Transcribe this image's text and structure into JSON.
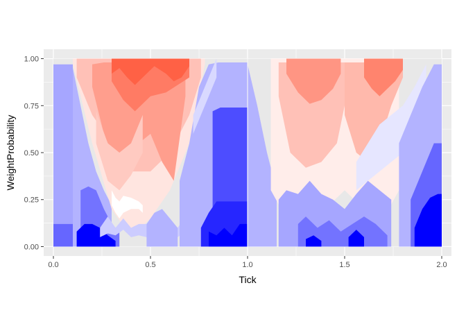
{
  "chart_data": {
    "type": "heatmap",
    "title": "",
    "xlabel": "Tick",
    "ylabel": "WeightProbability",
    "xlim": [
      -0.05,
      2.05
    ],
    "ylim": [
      -0.05,
      1.05
    ],
    "x_ticks": [
      0,
      0.5,
      1,
      1.5,
      2
    ],
    "x_tick_labels": [
      "0.0",
      "0.5",
      "1.0",
      "1.5",
      "2.0"
    ],
    "y_ticks": [
      0,
      0.25,
      0.5,
      0.75,
      1
    ],
    "y_tick_labels": [
      "0.00",
      "0.25",
      "0.50",
      "0.75",
      "1.00"
    ],
    "grid": true,
    "background": "#ebebeb",
    "fill_scale": {
      "low": "#0000ff",
      "mid": "#ffffff",
      "high": "#ff4f30"
    },
    "data_extent": {
      "x": [
        0,
        2
      ],
      "y": [
        0,
        1
      ]
    },
    "regions": [
      {
        "kind": "band",
        "x": [
          0.0,
          0.1
        ],
        "y0": [
          0.0,
          0.0
        ],
        "y1": [
          0.97,
          0.97
        ],
        "level": -0.35
      },
      {
        "kind": "band",
        "x": [
          0.0,
          0.03,
          0.06,
          0.1,
          0.14
        ],
        "y0": [
          0.0,
          0.0,
          0.0,
          0.0,
          0.0
        ],
        "y1": [
          0.12,
          0.12,
          0.12,
          0.12,
          0.1
        ],
        "level": -0.6
      },
      {
        "kind": "band",
        "x": [
          0.1,
          0.14,
          0.18,
          0.22,
          0.26,
          0.3
        ],
        "y0": [
          0.0,
          0.0,
          0.0,
          0.0,
          0.0,
          0.0
        ],
        "y1": [
          0.95,
          0.75,
          0.55,
          0.4,
          0.3,
          0.22
        ],
        "level": -0.3
      },
      {
        "kind": "band",
        "x": [
          0.14,
          0.18,
          0.22,
          0.26,
          0.3,
          0.34
        ],
        "y0": [
          0.0,
          0.0,
          0.0,
          0.0,
          0.0,
          0.0
        ],
        "y1": [
          0.3,
          0.32,
          0.3,
          0.2,
          0.12,
          0.08
        ],
        "level": -0.55
      },
      {
        "kind": "band",
        "x": [
          0.12,
          0.16,
          0.2,
          0.24,
          0.28,
          0.32
        ],
        "y0": [
          0.0,
          0.0,
          0.0,
          0.0,
          0.0,
          0.0
        ],
        "y1": [
          0.08,
          0.12,
          0.12,
          0.1,
          0.06,
          0.03
        ],
        "level": -1.0
      },
      {
        "kind": "band",
        "x": [
          0.1,
          0.2,
          0.3,
          0.4,
          0.5,
          0.6,
          0.7,
          0.78
        ],
        "y0": [
          0.97,
          0.55,
          0.2,
          0.05,
          0.15,
          0.3,
          0.55,
          0.97
        ],
        "y1": [
          1.0,
          1.0,
          1.0,
          1.0,
          1.0,
          1.0,
          1.0,
          1.0
        ],
        "level": 0.15
      },
      {
        "kind": "band",
        "x": [
          0.12,
          0.2,
          0.3,
          0.4,
          0.5,
          0.6,
          0.7,
          0.76
        ],
        "y0": [
          0.9,
          0.7,
          0.55,
          0.4,
          0.4,
          0.5,
          0.7,
          0.9
        ],
        "y1": [
          1.0,
          1.0,
          1.0,
          1.0,
          1.0,
          1.0,
          1.0,
          1.0
        ],
        "level": 0.35
      },
      {
        "kind": "band",
        "x": [
          0.2,
          0.26,
          0.32,
          0.38,
          0.44,
          0.5,
          0.56,
          0.62,
          0.68
        ],
        "y0": [
          0.85,
          0.6,
          0.45,
          0.5,
          0.55,
          0.6,
          0.45,
          0.35,
          0.8
        ],
        "y1": [
          0.97,
          0.98,
          0.98,
          0.98,
          0.98,
          0.98,
          0.98,
          0.98,
          0.97
        ],
        "level": 0.55
      },
      {
        "kind": "band",
        "x": [
          0.3,
          0.36,
          0.42,
          0.5,
          0.58,
          0.64,
          0.7
        ],
        "y0": [
          0.88,
          0.78,
          0.72,
          0.8,
          0.82,
          0.86,
          0.9
        ],
        "y1": [
          1.0,
          1.0,
          1.0,
          1.0,
          1.0,
          1.0,
          1.0
        ],
        "level": 0.75
      },
      {
        "kind": "band",
        "x": [
          0.3,
          0.34,
          0.38,
          0.42,
          0.46,
          0.52,
          0.58,
          0.62,
          0.66,
          0.7
        ],
        "y0": [
          0.92,
          0.95,
          0.9,
          0.86,
          0.9,
          0.96,
          0.92,
          0.88,
          0.9,
          0.96
        ],
        "y1": [
          1.0,
          1.0,
          1.0,
          1.0,
          1.0,
          1.0,
          1.0,
          1.0,
          1.0,
          1.0
        ],
        "level": 0.9
      },
      {
        "kind": "band",
        "x": [
          0.22,
          0.28,
          0.34,
          0.4,
          0.46
        ],
        "y0": [
          0.55,
          0.35,
          0.3,
          0.38,
          0.5
        ],
        "y1": [
          0.72,
          0.55,
          0.5,
          0.55,
          0.7
        ],
        "level": 0.3
      },
      {
        "kind": "band",
        "x": [
          0.24,
          0.28,
          0.32,
          0.36,
          0.4,
          0.44,
          0.48,
          0.52,
          0.56,
          0.6,
          0.64,
          0.68,
          0.72
        ],
        "y0": [
          0.05,
          0.07,
          0.06,
          0.09,
          0.05,
          0.06,
          0.05,
          0.02,
          0.04,
          0.02,
          0.05,
          0.08,
          0.1
        ],
        "y1": [
          0.1,
          0.16,
          0.1,
          0.15,
          0.1,
          0.12,
          0.12,
          0.06,
          0.08,
          0.05,
          0.1,
          0.16,
          0.2
        ],
        "level": -0.2
      },
      {
        "kind": "band",
        "x": [
          0.3,
          0.32,
          0.34,
          0.36,
          0.4,
          0.44,
          0.46
        ],
        "y0": [
          0.22,
          0.18,
          0.15,
          0.18,
          0.2,
          0.2,
          0.18
        ],
        "y1": [
          0.3,
          0.26,
          0.24,
          0.27,
          0.26,
          0.24,
          0.22
        ],
        "level": 0.0
      },
      {
        "kind": "band",
        "x": [
          0.48,
          0.52,
          0.56,
          0.6,
          0.64
        ],
        "y0": [
          0.0,
          0.0,
          0.0,
          0.0,
          0.0
        ],
        "y1": [
          0.12,
          0.18,
          0.2,
          0.15,
          0.1
        ],
        "level": -0.3
      },
      {
        "kind": "band",
        "x": [
          0.65,
          0.7,
          0.75,
          0.8,
          0.85,
          0.9,
          0.95,
          1.0
        ],
        "y0": [
          0.0,
          0.0,
          0.0,
          0.0,
          0.0,
          0.0,
          0.0,
          0.0
        ],
        "y1": [
          0.35,
          0.55,
          0.85,
          0.97,
          0.98,
          0.98,
          0.98,
          0.98
        ],
        "level": -0.3
      },
      {
        "kind": "band",
        "x": [
          0.82,
          0.86,
          0.9,
          0.94,
          0.98,
          1.0
        ],
        "y0": [
          0.0,
          0.0,
          0.0,
          0.0,
          0.0,
          0.0
        ],
        "y1": [
          0.72,
          0.74,
          0.74,
          0.74,
          0.74,
          0.74
        ],
        "level": -0.7
      },
      {
        "kind": "band",
        "x": [
          0.76,
          0.8,
          0.84,
          0.88,
          0.92,
          0.96,
          1.0
        ],
        "y0": [
          0.0,
          0.0,
          0.0,
          0.0,
          0.0,
          0.0,
          0.0
        ],
        "y1": [
          0.1,
          0.18,
          0.24,
          0.24,
          0.24,
          0.24,
          0.24
        ],
        "level": -0.85
      },
      {
        "kind": "band",
        "x": [
          0.8,
          0.84,
          0.88,
          0.92,
          0.96,
          1.0
        ],
        "y0": [
          0.0,
          0.0,
          0.0,
          0.0,
          0.0,
          0.0
        ],
        "y1": [
          0.08,
          0.06,
          0.1,
          0.06,
          0.12,
          0.12
        ],
        "level": -1.0
      },
      {
        "kind": "band",
        "x": [
          0.72,
          0.76,
          0.8,
          0.84
        ],
        "y0": [
          0.6,
          0.7,
          0.8,
          0.9
        ],
        "y1": [
          0.7,
          0.8,
          0.9,
          1.0
        ],
        "level": -0.15
      },
      {
        "kind": "band",
        "x": [
          1.0,
          1.05,
          1.1,
          1.15
        ],
        "y0": [
          0.0,
          0.0,
          0.0,
          0.0
        ],
        "y1": [
          0.97,
          0.75,
          0.5,
          0.3
        ],
        "level": -0.3
      },
      {
        "kind": "band",
        "x": [
          1.12,
          1.2,
          1.3,
          1.4,
          1.5,
          1.6,
          1.7,
          1.78
        ],
        "y0": [
          0.3,
          0.15,
          0.1,
          0.2,
          0.3,
          0.2,
          0.15,
          0.3
        ],
        "y1": [
          1.0,
          1.0,
          1.0,
          1.0,
          1.0,
          1.0,
          1.0,
          1.0
        ],
        "level": 0.1
      },
      {
        "kind": "band",
        "x": [
          1.16,
          1.22,
          1.3,
          1.38,
          1.46,
          1.52
        ],
        "y0": [
          0.8,
          0.5,
          0.42,
          0.45,
          0.55,
          0.85
        ],
        "y1": [
          0.98,
          0.98,
          0.98,
          0.98,
          0.98,
          0.98
        ],
        "level": 0.35
      },
      {
        "kind": "band",
        "x": [
          1.2,
          1.26,
          1.32,
          1.38,
          1.44,
          1.48
        ],
        "y0": [
          0.92,
          0.82,
          0.76,
          0.78,
          0.84,
          0.92
        ],
        "y1": [
          1.0,
          1.0,
          1.0,
          1.0,
          1.0,
          1.0
        ],
        "level": 0.6
      },
      {
        "kind": "band",
        "x": [
          1.5,
          1.56,
          1.62,
          1.68,
          1.74,
          1.8
        ],
        "y0": [
          0.7,
          0.5,
          0.45,
          0.55,
          0.75,
          0.9
        ],
        "y1": [
          0.98,
          0.98,
          0.98,
          0.98,
          0.98,
          0.98
        ],
        "level": 0.4
      },
      {
        "kind": "band",
        "x": [
          1.6,
          1.64,
          1.68,
          1.72,
          1.76,
          1.8
        ],
        "y0": [
          0.9,
          0.84,
          0.8,
          0.84,
          0.88,
          0.94
        ],
        "y1": [
          1.0,
          1.0,
          1.0,
          1.0,
          1.0,
          1.0
        ],
        "level": 0.7
      },
      {
        "kind": "band",
        "x": [
          1.16,
          1.2,
          1.26,
          1.32,
          1.38,
          1.44,
          1.5,
          1.56,
          1.62,
          1.68,
          1.74
        ],
        "y0": [
          0.0,
          0.0,
          0.0,
          0.0,
          0.0,
          0.0,
          0.0,
          0.0,
          0.0,
          0.0,
          0.0
        ],
        "y1": [
          0.25,
          0.3,
          0.28,
          0.35,
          0.28,
          0.25,
          0.2,
          0.28,
          0.35,
          0.3,
          0.25
        ],
        "level": -0.35
      },
      {
        "kind": "band",
        "x": [
          1.26,
          1.3,
          1.36,
          1.42,
          1.48,
          1.54,
          1.6,
          1.66,
          1.72
        ],
        "y0": [
          0.0,
          0.0,
          0.0,
          0.0,
          0.0,
          0.0,
          0.0,
          0.0,
          0.0
        ],
        "y1": [
          0.12,
          0.16,
          0.1,
          0.14,
          0.08,
          0.12,
          0.16,
          0.12,
          0.06
        ],
        "level": -0.55
      },
      {
        "kind": "band",
        "x": [
          1.3,
          1.34,
          1.38
        ],
        "y0": [
          0.0,
          0.0,
          0.0
        ],
        "y1": [
          0.04,
          0.06,
          0.03
        ],
        "level": -1.0
      },
      {
        "kind": "band",
        "x": [
          1.52,
          1.56,
          1.6
        ],
        "y0": [
          0.0,
          0.0,
          0.0
        ],
        "y1": [
          0.05,
          0.09,
          0.05
        ],
        "level": -1.0
      },
      {
        "kind": "band",
        "x": [
          1.56,
          1.62,
          1.68,
          1.74,
          1.8,
          1.86,
          1.92
        ],
        "y0": [
          0.3,
          0.35,
          0.4,
          0.45,
          0.5,
          0.6,
          0.75
        ],
        "y1": [
          0.45,
          0.55,
          0.65,
          0.7,
          0.75,
          0.85,
          0.97
        ],
        "level": -0.1
      },
      {
        "kind": "band",
        "x": [
          1.78,
          1.84,
          1.9,
          1.96,
          2.0
        ],
        "y0": [
          0.0,
          0.0,
          0.0,
          0.0,
          0.0
        ],
        "y1": [
          0.55,
          0.7,
          0.85,
          0.97,
          0.97
        ],
        "level": -0.3
      },
      {
        "kind": "band",
        "x": [
          1.84,
          1.88,
          1.92,
          1.96,
          2.0
        ],
        "y0": [
          0.0,
          0.0,
          0.0,
          0.0,
          0.0
        ],
        "y1": [
          0.25,
          0.35,
          0.45,
          0.55,
          0.55
        ],
        "level": -0.6
      },
      {
        "kind": "band",
        "x": [
          1.86,
          1.9,
          1.94,
          1.98,
          2.0
        ],
        "y0": [
          0.0,
          0.0,
          0.0,
          0.0,
          0.0
        ],
        "y1": [
          0.1,
          0.2,
          0.26,
          0.28,
          0.28
        ],
        "level": -1.0
      }
    ]
  }
}
